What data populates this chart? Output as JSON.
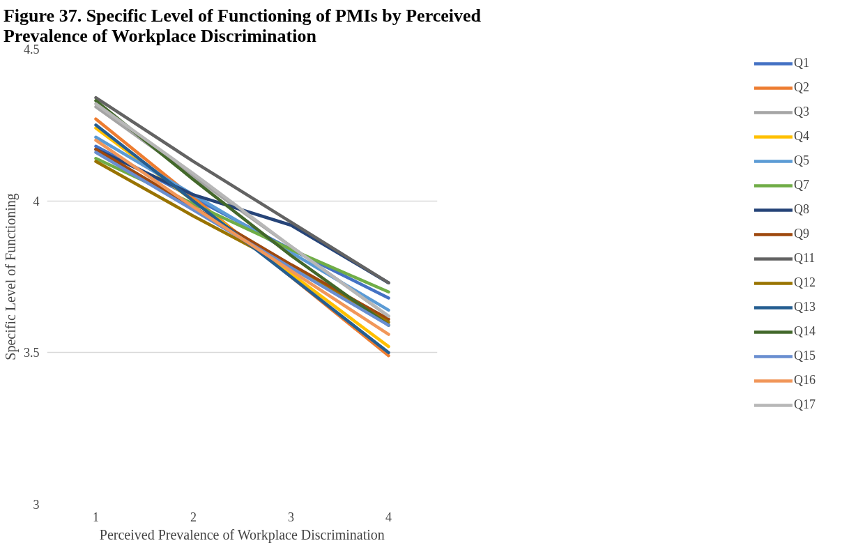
{
  "chart_data": {
    "type": "line",
    "title": "Figure 37. Specific Level of Functioning of PMIs by Perceived\nPrevalence of Workplace Discrimination",
    "xlabel": "Perceived Prevalence of Workplace Discrimination",
    "ylabel": "Specific Level of Functioning",
    "x": [
      1,
      2,
      3,
      4
    ],
    "xlim": [
      0.5,
      4.5
    ],
    "xticks": [
      1,
      2,
      3,
      4
    ],
    "ylim": [
      3,
      4.5
    ],
    "yticks": [
      3,
      3.5,
      4,
      4.5
    ],
    "grid": "y",
    "legend": "right",
    "marker": "none",
    "line_style": "solid",
    "series": [
      {
        "name": "Q1",
        "color": "#4472c4",
        "values": [
          4.18,
          4.01,
          3.84,
          3.68
        ]
      },
      {
        "name": "Q2",
        "color": "#ed7d31",
        "values": [
          4.27,
          4.01,
          3.75,
          3.49
        ]
      },
      {
        "name": "Q3",
        "color": "#a5a5a5",
        "values": [
          4.31,
          4.08,
          3.85,
          3.62
        ]
      },
      {
        "name": "Q4",
        "color": "#ffc000",
        "values": [
          4.24,
          4.0,
          3.76,
          3.52
        ]
      },
      {
        "name": "Q5",
        "color": "#5b9bd5",
        "values": [
          4.21,
          4.02,
          3.83,
          3.64
        ]
      },
      {
        "name": "Q7",
        "color": "#70ad47",
        "values": [
          4.14,
          3.99,
          3.84,
          3.7
        ]
      },
      {
        "name": "Q8",
        "color": "#264478",
        "values": [
          4.17,
          4.02,
          3.92,
          3.73
        ]
      },
      {
        "name": "Q9",
        "color": "#9e480e",
        "values": [
          4.17,
          3.98,
          3.79,
          3.61
        ]
      },
      {
        "name": "Q11",
        "color": "#636363",
        "values": [
          4.34,
          4.13,
          3.93,
          3.73
        ]
      },
      {
        "name": "Q12",
        "color": "#997300",
        "values": [
          4.13,
          3.95,
          3.78,
          3.6
        ]
      },
      {
        "name": "Q13",
        "color": "#255e91",
        "values": [
          4.25,
          4.0,
          3.75,
          3.5
        ]
      },
      {
        "name": "Q14",
        "color": "#43682b",
        "values": [
          4.33,
          4.07,
          3.82,
          3.59
        ]
      },
      {
        "name": "Q15",
        "color": "#698ed0",
        "values": [
          4.16,
          3.97,
          3.78,
          3.59
        ]
      },
      {
        "name": "Q16",
        "color": "#f1975a",
        "values": [
          4.2,
          3.98,
          3.77,
          3.56
        ]
      },
      {
        "name": "Q17",
        "color": "#b7b7b7",
        "values": [
          4.32,
          4.09,
          3.85,
          3.62
        ]
      }
    ]
  }
}
